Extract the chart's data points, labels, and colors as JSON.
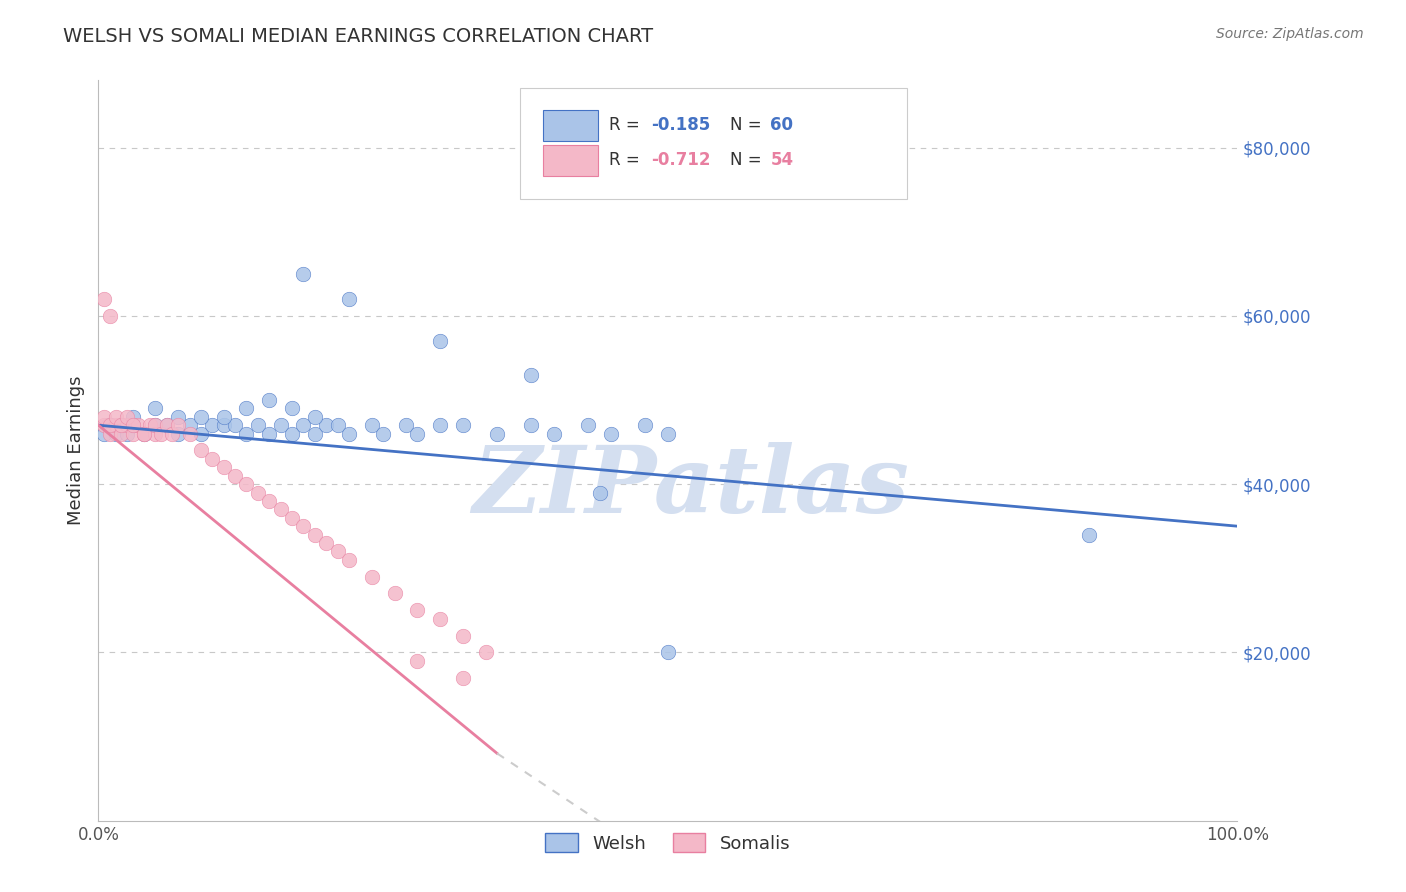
{
  "title": "WELSH VS SOMALI MEDIAN EARNINGS CORRELATION CHART",
  "source_text": "Source: ZipAtlas.com",
  "ylabel": "Median Earnings",
  "xlim": [
    0.0,
    1.0
  ],
  "ylim": [
    0,
    88000
  ],
  "yticks": [
    0,
    20000,
    40000,
    60000,
    80000
  ],
  "background_color": "#ffffff",
  "grid_color": "#c8c8c8",
  "watermark": "ZIPatlas",
  "watermark_color": "#d4dff0",
  "welsh_color": "#aac4e8",
  "somali_color": "#f4b8c8",
  "welsh_line_color": "#4472c4",
  "somali_line_color": "#e87fa0",
  "somali_dash_color": "#cccccc",
  "welsh_scatter": {
    "x": [
      0.005,
      0.01,
      0.015,
      0.02,
      0.03,
      0.04,
      0.05,
      0.06,
      0.07,
      0.08,
      0.09,
      0.1,
      0.11,
      0.12,
      0.13,
      0.14,
      0.15,
      0.16,
      0.17,
      0.18,
      0.19,
      0.2,
      0.21,
      0.22,
      0.23,
      0.25,
      0.27,
      0.28,
      0.3,
      0.32,
      0.33,
      0.35,
      0.36,
      0.38,
      0.4,
      0.42,
      0.44,
      0.46,
      0.48,
      0.5,
      0.52,
      0.54,
      0.56,
      0.58,
      0.6,
      0.62,
      0.64,
      0.66,
      0.68,
      0.7,
      0.22,
      0.24,
      0.26,
      0.3,
      0.38,
      0.45,
      0.5,
      0.87,
      0.44,
      0.5
    ],
    "y": [
      46000,
      47000,
      48000,
      46000,
      47000,
      47000,
      46000,
      48000,
      46000,
      46000,
      47000,
      48000,
      46000,
      47000,
      46000,
      47000,
      46000,
      48000,
      47000,
      47000,
      46000,
      46000,
      47000,
      46000,
      47000,
      48000,
      46000,
      47000,
      46000,
      46000,
      47000,
      46000,
      47000,
      46000,
      47000,
      46000,
      46000,
      47000,
      46000,
      46000,
      47000,
      46000,
      46000,
      47000,
      46000,
      46000,
      47000,
      46000,
      46000,
      47000,
      62000,
      58000,
      55000,
      53000,
      52000,
      50000,
      19000,
      33000,
      39000,
      20000
    ]
  },
  "somali_scatter": {
    "x": [
      0.005,
      0.01,
      0.015,
      0.02,
      0.025,
      0.03,
      0.035,
      0.04,
      0.045,
      0.05,
      0.055,
      0.06,
      0.065,
      0.07,
      0.075,
      0.08,
      0.085,
      0.09,
      0.095,
      0.1,
      0.105,
      0.11,
      0.115,
      0.12,
      0.13,
      0.14,
      0.15,
      0.16,
      0.17,
      0.18,
      0.19,
      0.2,
      0.21,
      0.22,
      0.23,
      0.25,
      0.27,
      0.29,
      0.31,
      0.33,
      0.02,
      0.03,
      0.04,
      0.05,
      0.06,
      0.07,
      0.08,
      0.09,
      0.1,
      0.11,
      0.12,
      0.13,
      0.14,
      0.15
    ],
    "y": [
      46000,
      48000,
      47000,
      62000,
      60000,
      47000,
      48000,
      46000,
      47000,
      47000,
      46000,
      60000,
      47000,
      57000,
      46000,
      46000,
      47000,
      46000,
      46000,
      47000,
      46000,
      46000,
      45000,
      44000,
      44000,
      43000,
      42000,
      41000,
      40000,
      39000,
      38000,
      37000,
      36000,
      35000,
      34000,
      32000,
      30000,
      28000,
      26000,
      24000,
      44000,
      43000,
      45000,
      44000,
      43000,
      42000,
      41000,
      40000,
      43000,
      42000,
      41000,
      40000,
      39000,
      38000
    ]
  }
}
